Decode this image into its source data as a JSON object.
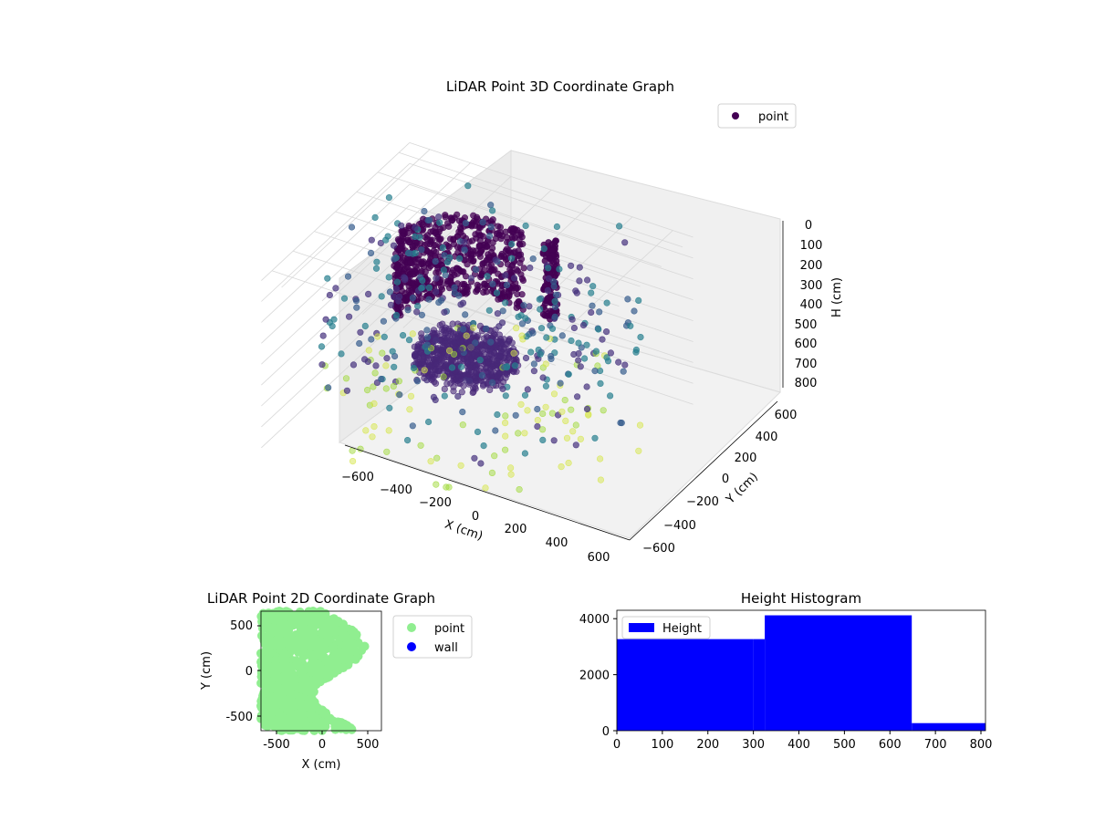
{
  "chart_data": [
    {
      "type": "scatter",
      "projection": "3d",
      "title": "LiDAR Point 3D Coordinate Graph",
      "xlabel": "X (cm)",
      "ylabel": "Y (cm)",
      "zlabel": "H (cm)",
      "xlim": [
        -700,
        700
      ],
      "ylim": [
        -700,
        700
      ],
      "zlim": [
        800,
        0
      ],
      "z_axis_inverted": true,
      "xticks": [
        "−600",
        "−400",
        "−200",
        "0",
        "200",
        "400",
        "600"
      ],
      "yticks": [
        "−600",
        "−400",
        "−200",
        "0",
        "200",
        "400",
        "600"
      ],
      "zticks": [
        "0",
        "100",
        "200",
        "300",
        "400",
        "500",
        "600",
        "700",
        "800"
      ],
      "colormap": "viridis",
      "grid": true,
      "legend": {
        "position": "upper-right",
        "entries": [
          {
            "label": "point",
            "color": "#440154"
          }
        ]
      },
      "series": [
        {
          "name": "point",
          "description_clusters": [
            {
              "shape": "arc-wall",
              "x_range": [
                -500,
                200
              ],
              "y_range": [
                300,
                600
              ],
              "z_range": [
                0,
                400
              ],
              "color": "#440154"
            },
            {
              "shape": "dense-disk",
              "x_range": [
                -400,
                200
              ],
              "y_range": [
                -100,
                300
              ],
              "z_range": [
                500,
                600
              ],
              "color": "#482475"
            },
            {
              "shape": "pillar",
              "x_range": [
                50,
                150
              ],
              "y_range": [
                400,
                500
              ],
              "z_range": [
                100,
                500
              ],
              "color": "#440154"
            },
            {
              "shape": "scattered-ring",
              "x_range": [
                -700,
                700
              ],
              "y_range": [
                -700,
                700
              ],
              "z_range": [
                0,
                800
              ],
              "color": "#3b528b"
            }
          ]
        }
      ]
    },
    {
      "type": "scatter",
      "title": "LiDAR Point 2D Coordinate Graph",
      "xlabel": "X (cm)",
      "ylabel": "Y (cm)",
      "xlim": [
        -660,
        660
      ],
      "ylim": [
        -680,
        680
      ],
      "xticks": [
        -500,
        0,
        500
      ],
      "yticks": [
        -500,
        0,
        500
      ],
      "legend": {
        "position": "outside-right",
        "entries": [
          {
            "label": "point",
            "color": "#90ee90"
          },
          {
            "label": "wall",
            "color": "#0000ff"
          }
        ]
      },
      "series": [
        {
          "name": "point",
          "color": "#90ee90",
          "extent": {
            "x": [
              -660,
              480
            ],
            "y": [
              -680,
              680
            ]
          }
        },
        {
          "name": "wall",
          "color": "#0000ff",
          "count": 0
        }
      ]
    },
    {
      "type": "bar",
      "title": "Height Histogram",
      "xlim": [
        0,
        810
      ],
      "ylim": [
        0,
        4300
      ],
      "xticks": [
        0,
        100,
        200,
        300,
        400,
        500,
        600,
        700,
        800
      ],
      "yticks": [
        0,
        2000,
        4000
      ],
      "legend": {
        "position": "upper-left",
        "entries": [
          {
            "label": "Height",
            "color": "#0000ff"
          }
        ]
      },
      "series": [
        {
          "name": "Height",
          "color": "#0000ff",
          "bins": [
            {
              "x0": 0,
              "x1": 300,
              "value": 3270
            },
            {
              "x0": 300,
              "x1": 325,
              "value": 3270
            },
            {
              "x0": 325,
              "x1": 648,
              "value": 4120
            },
            {
              "x0": 648,
              "x1": 810,
              "value": 270
            }
          ]
        }
      ]
    }
  ]
}
